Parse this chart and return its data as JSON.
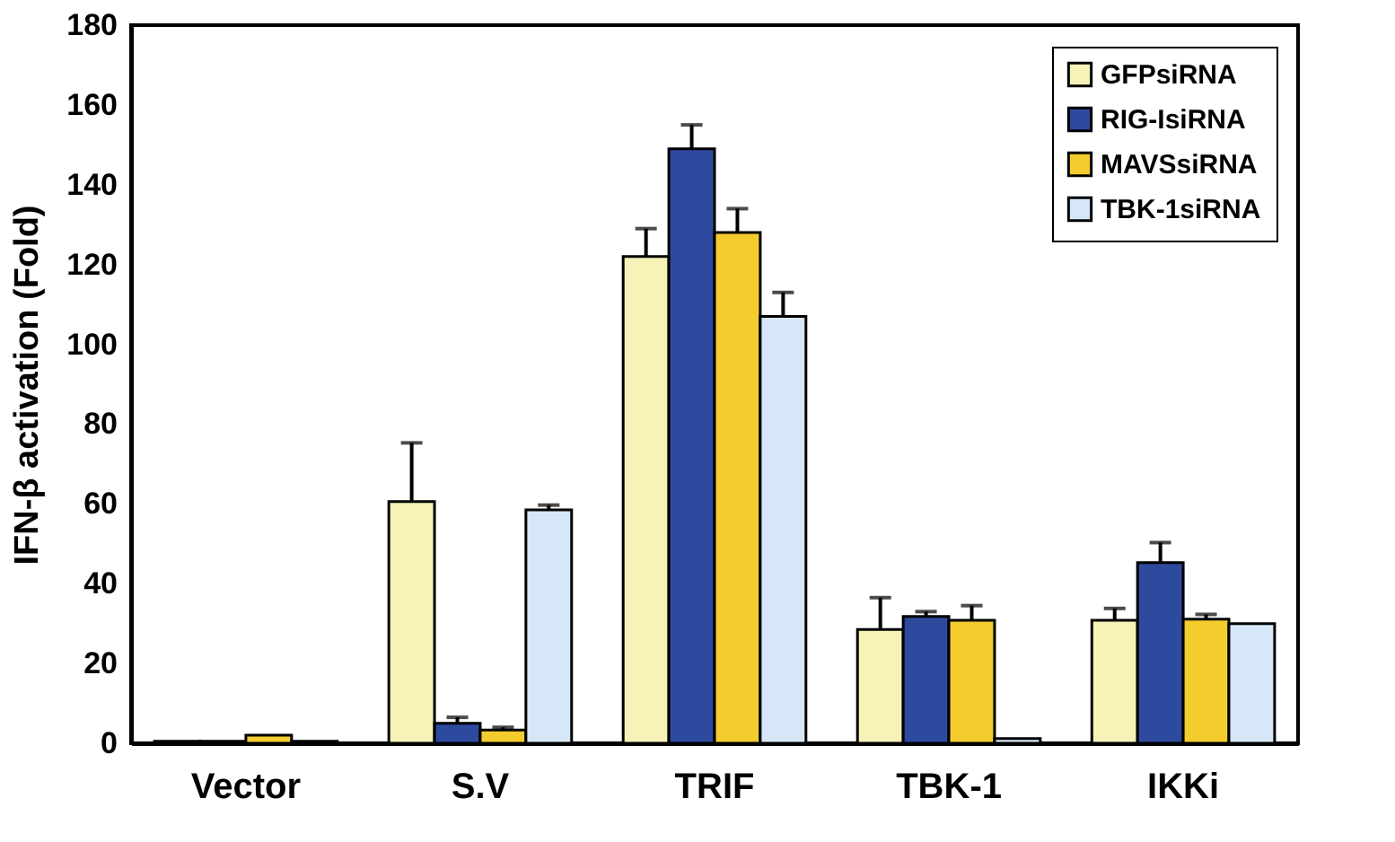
{
  "chart_data": {
    "type": "bar",
    "ylabel": "IFN-β activation (Fold)",
    "categories": [
      "Vector",
      "S.V",
      "TRIF",
      "TBK-1",
      "IKKi"
    ],
    "series": [
      {
        "name": "GFPsiRNA",
        "color": "#f7f3b8",
        "values": [
          0.5,
          60.6,
          122,
          28.5,
          30.8
        ],
        "errors": [
          null,
          14.7,
          7,
          8,
          3
        ]
      },
      {
        "name": "RIG-IsiRNA",
        "color": "#2e4a9e",
        "values": [
          0.5,
          5,
          149,
          31.8,
          45.3
        ],
        "errors": [
          null,
          1.5,
          6,
          1.2,
          5
        ]
      },
      {
        "name": "MAVSsiRNA",
        "color": "#f5cc2e",
        "values": [
          2,
          3.3,
          128,
          30.8,
          31.1
        ],
        "errors": [
          null,
          0.7,
          6,
          3.7,
          1.2
        ]
      },
      {
        "name": "TBK-1siRNA",
        "color": "#d6e8f7",
        "values": [
          0.5,
          58.5,
          107,
          1.2,
          30
        ],
        "errors": [
          null,
          1.2,
          6,
          null,
          null
        ]
      }
    ],
    "ylim": [
      0,
      180
    ],
    "yticks": [
      0,
      20,
      40,
      60,
      80,
      100,
      120,
      140,
      160,
      180
    ],
    "grid": false,
    "legend": "top right"
  }
}
